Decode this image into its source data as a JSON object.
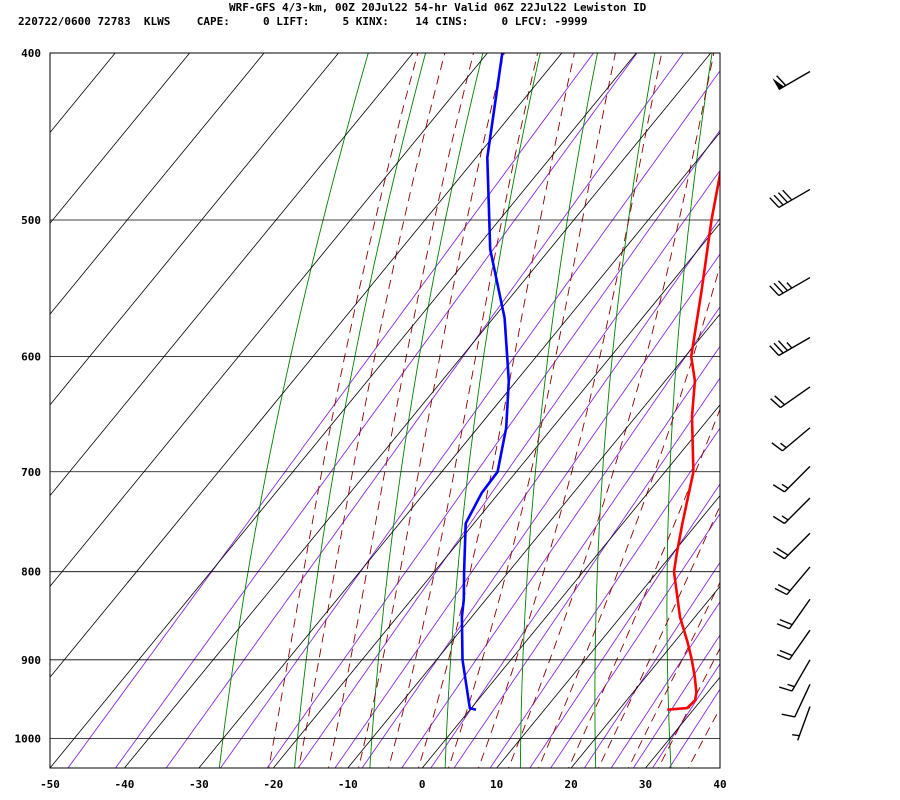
{
  "header": {
    "title": "WRF-GFS 4/3-km, 00Z 20Jul22 54-hr Valid 06Z 22Jul22 Lewiston ID",
    "info": "220722/0600 72783  KLWS    CAPE:     0 LIFT:     5 KINX:    14 CINS:     0 LFCV: -9999"
  },
  "colors": {
    "isotherm": "#000000",
    "isobar": "#000000",
    "dry_adiabat": "#008000",
    "moist_adiabat": "#8b0000",
    "mixing_ratio": "#8a2be2",
    "temperature": "#ff0000",
    "dewpoint": "#0000ff",
    "wind_barb": "#000000"
  },
  "chart_data": {
    "type": "skew-t",
    "pressure_ticks": [
      "400",
      "500",
      "600",
      "700",
      "800",
      "900",
      "1000"
    ],
    "temperature_ticks": [
      "-50",
      "-40",
      "-30",
      "-20",
      "-10",
      "0",
      "10",
      "20",
      "30",
      "40"
    ],
    "pressure_range_hpa": [
      400,
      1040
    ],
    "temperature_range_c": [
      -50,
      40
    ],
    "grid": true,
    "series": [
      {
        "key": "temperature",
        "points": [
          {
            "p": 962,
            "t": 26.5
          },
          {
            "p": 960,
            "t": 29.0
          },
          {
            "p": 950,
            "t": 29.2
          },
          {
            "p": 940,
            "t": 28.5
          },
          {
            "p": 920,
            "t": 26.5
          },
          {
            "p": 900,
            "t": 24.3
          },
          {
            "p": 880,
            "t": 21.9
          },
          {
            "p": 850,
            "t": 18.0
          },
          {
            "p": 800,
            "t": 12.2
          },
          {
            "p": 780,
            "t": 10.5
          },
          {
            "p": 750,
            "t": 8.0
          },
          {
            "p": 700,
            "t": 3.8
          },
          {
            "p": 650,
            "t": -2.5
          },
          {
            "p": 620,
            "t": -6.0
          },
          {
            "p": 600,
            "t": -9.2
          },
          {
            "p": 550,
            "t": -15.0
          },
          {
            "p": 500,
            "t": -21.5
          },
          {
            "p": 450,
            "t": -28.2
          },
          {
            "p": 400,
            "t": -37.0
          }
        ]
      },
      {
        "key": "dewpoint",
        "points": [
          {
            "p": 962,
            "t": 0.8
          },
          {
            "p": 960,
            "t": -0.2
          },
          {
            "p": 900,
            "t": -6.5
          },
          {
            "p": 850,
            "t": -11.3
          },
          {
            "p": 830,
            "t": -13.0
          },
          {
            "p": 800,
            "t": -16.0
          },
          {
            "p": 750,
            "t": -21.1
          },
          {
            "p": 720,
            "t": -22.3
          },
          {
            "p": 700,
            "t": -22.5
          },
          {
            "p": 660,
            "t": -26.2
          },
          {
            "p": 620,
            "t": -31.0
          },
          {
            "p": 570,
            "t": -38.5
          },
          {
            "p": 520,
            "t": -48.0
          },
          {
            "p": 460,
            "t": -58.5
          },
          {
            "p": 400,
            "t": -68.0
          }
        ]
      }
    ],
    "wind_barbs": [
      {
        "p": 958,
        "dir": 200,
        "spd": 5
      },
      {
        "p": 930,
        "dir": 205,
        "spd": 10
      },
      {
        "p": 900,
        "dir": 210,
        "spd": 15
      },
      {
        "p": 865,
        "dir": 215,
        "spd": 20
      },
      {
        "p": 830,
        "dir": 215,
        "spd": 20
      },
      {
        "p": 795,
        "dir": 220,
        "spd": 20
      },
      {
        "p": 760,
        "dir": 225,
        "spd": 20
      },
      {
        "p": 725,
        "dir": 225,
        "spd": 15
      },
      {
        "p": 695,
        "dir": 225,
        "spd": 15
      },
      {
        "p": 660,
        "dir": 230,
        "spd": 15
      },
      {
        "p": 625,
        "dir": 235,
        "spd": 20
      },
      {
        "p": 585,
        "dir": 240,
        "spd": 35
      },
      {
        "p": 540,
        "dir": 240,
        "spd": 35
      },
      {
        "p": 480,
        "dir": 240,
        "spd": 40
      },
      {
        "p": 410,
        "dir": 240,
        "spd": 60
      }
    ]
  }
}
